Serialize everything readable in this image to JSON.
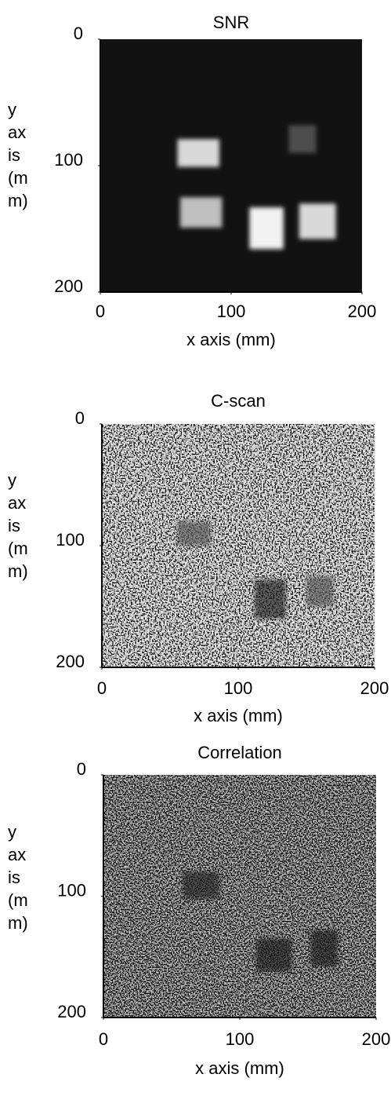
{
  "chart_data": [
    {
      "type": "heatmap",
      "title": "SNR",
      "xlabel": "x axis (mm)",
      "ylabel": "y axis (mm)",
      "xlim": [
        0,
        200
      ],
      "ylim": [
        0,
        200
      ],
      "xticks": [
        0,
        100,
        200
      ],
      "yticks": [
        0,
        100,
        200
      ],
      "background": 0.07,
      "noise": false,
      "regions": [
        {
          "x": [
            59,
            91
          ],
          "y": [
            79,
            101
          ],
          "value": 0.85
        },
        {
          "x": [
            144,
            165
          ],
          "y": [
            68,
            90
          ],
          "value": 0.3
        },
        {
          "x": [
            61,
            93
          ],
          "y": [
            125,
            149
          ],
          "value": 0.75
        },
        {
          "x": [
            114,
            140
          ],
          "y": [
            133,
            166
          ],
          "value": 0.95
        },
        {
          "x": [
            152,
            180
          ],
          "y": [
            130,
            158
          ],
          "value": 0.85
        }
      ]
    },
    {
      "type": "heatmap",
      "title": "C-scan",
      "xlabel": "x axis (mm)",
      "ylabel": "y axis (mm)",
      "xlim": [
        0,
        200
      ],
      "ylim": [
        0,
        200
      ],
      "xticks": [
        0,
        100,
        200
      ],
      "yticks": [
        0,
        100,
        200
      ],
      "background": 0.6,
      "noise": true,
      "regions": [
        {
          "x": [
            55,
            80
          ],
          "y": [
            80,
            100
          ],
          "value": 0.35
        },
        {
          "x": [
            112,
            135
          ],
          "y": [
            128,
            160
          ],
          "value": 0.15
        },
        {
          "x": [
            150,
            170
          ],
          "y": [
            125,
            150
          ],
          "value": 0.35
        }
      ]
    },
    {
      "type": "heatmap",
      "title": "Correlation",
      "xlabel": "x axis (mm)",
      "ylabel": "y axis (mm)",
      "xlim": [
        0,
        200
      ],
      "ylim": [
        0,
        200
      ],
      "xticks": [
        0,
        100,
        200
      ],
      "yticks": [
        0,
        100,
        200
      ],
      "background": 0.3,
      "noise": true,
      "regions": [
        {
          "x": [
            58,
            85
          ],
          "y": [
            80,
            102
          ],
          "value": 0.15
        },
        {
          "x": [
            112,
            138
          ],
          "y": [
            135,
            162
          ],
          "value": 0.1
        },
        {
          "x": [
            152,
            172
          ],
          "y": [
            128,
            158
          ],
          "value": 0.12
        }
      ]
    }
  ]
}
